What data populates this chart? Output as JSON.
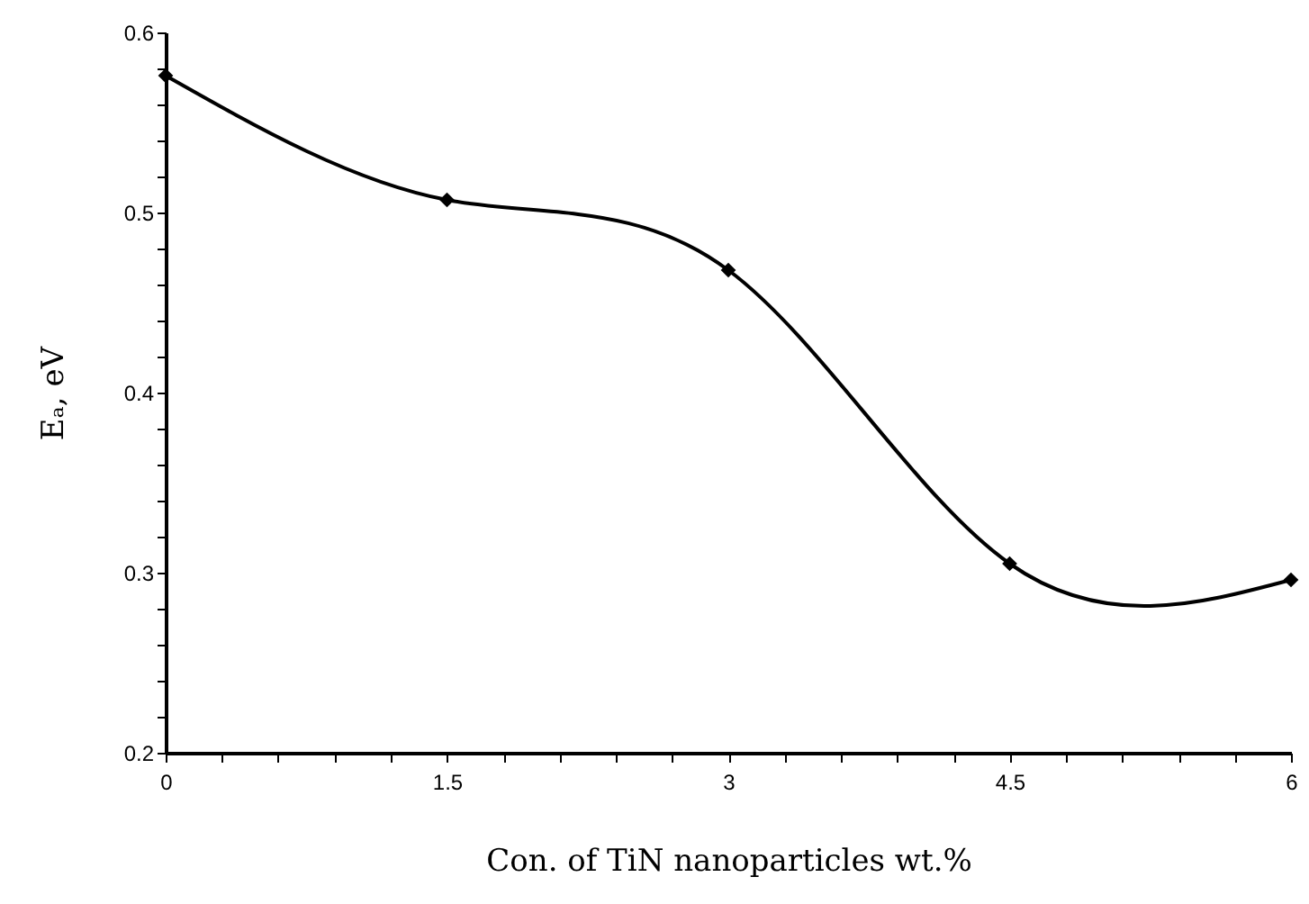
{
  "chart_data": {
    "type": "line",
    "xlabel": "Con. of TiN nanoparticles wt.%",
    "ylabel": "Eₐ, eV",
    "x": [
      0,
      1.5,
      3,
      4.5,
      6
    ],
    "series": [
      {
        "color": "#000000",
        "values": [
          0.576,
          0.507,
          0.468,
          0.305,
          0.296
        ]
      }
    ],
    "xlim": [
      0,
      6
    ],
    "xticks": [
      0,
      {
        "value": 0.3,
        "label": null
      },
      {
        "value": 0.6,
        "label": null
      },
      {
        "value": 0.9,
        "label": null
      },
      {
        "value": 1.2,
        "label": null
      },
      1.5,
      {
        "value": 1.8,
        "label": null
      },
      {
        "value": 2.1,
        "label": null
      },
      {
        "value": 2.4,
        "label": null
      },
      {
        "value": 2.7,
        "label": null
      },
      3,
      {
        "value": 3.3,
        "label": null
      },
      {
        "value": 3.6,
        "label": null
      },
      {
        "value": 3.9,
        "label": null
      },
      {
        "value": 4.2,
        "label": null
      },
      4.5,
      {
        "value": 4.8,
        "label": null
      },
      {
        "value": 5.1,
        "label": null
      },
      {
        "value": 5.4,
        "label": null
      },
      {
        "value": 5.7,
        "label": null
      },
      6
    ],
    "ylim": [
      0.2,
      0.6
    ],
    "yticks": [
      0.2,
      {
        "value": 0.22,
        "label": null
      },
      {
        "value": 0.24,
        "label": null
      },
      {
        "value": 0.26,
        "label": null
      },
      {
        "value": 0.28,
        "label": null
      },
      0.3,
      {
        "value": 0.32,
        "label": null
      },
      {
        "value": 0.34,
        "label": null
      },
      {
        "value": 0.36,
        "label": null
      },
      {
        "value": 0.38,
        "label": null
      },
      0.4,
      {
        "value": 0.42,
        "label": null
      },
      {
        "value": 0.44,
        "label": null
      },
      {
        "value": 0.46,
        "label": null
      },
      {
        "value": 0.48,
        "label": null
      },
      0.5,
      {
        "value": 0.52,
        "label": null
      },
      {
        "value": 0.54,
        "label": null
      },
      {
        "value": 0.56,
        "label": null
      },
      {
        "value": 0.58,
        "label": null
      },
      0.6
    ],
    "marker": "diamond",
    "line_style": "solid"
  }
}
